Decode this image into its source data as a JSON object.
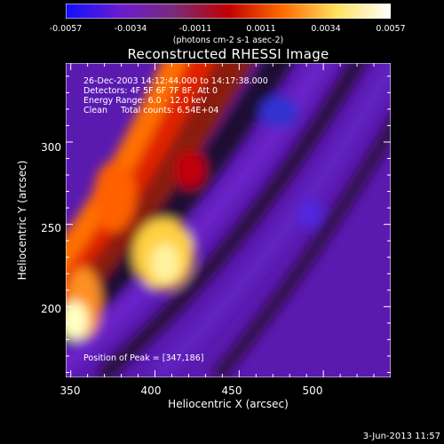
{
  "colorbar": {
    "ticks": [
      "-0.0057",
      "-0.0034",
      "-0.0011",
      "0.0011",
      "0.0034",
      "0.0057"
    ],
    "unit": "(photons cm-2 s-1 asec-2)",
    "stops": [
      "#1010ff",
      "#6a1bd0",
      "#7a2a7a",
      "#c00000",
      "#ff6a00",
      "#ffe060",
      "#ffffff"
    ]
  },
  "chart_data": {
    "type": "heatmap",
    "title": "Reconstructed RHESSI Image",
    "xlabel": "Heliocentric X (arcsec)",
    "ylabel": "Heliocentric Y (arcsec)",
    "xlim": [
      347,
      540
    ],
    "ylim": [
      157,
      348
    ],
    "xticks": [
      "350",
      "400",
      "450",
      "500"
    ],
    "yticks": [
      "200",
      "250",
      "300"
    ],
    "value_range": [
      -0.0057,
      0.0057
    ],
    "peak": [
      347,
      186
    ]
  },
  "annotations": {
    "time_range": "26-Dec-2003 14:12:44.000 to 14:17:38.000",
    "detectors": "Detectors: 4F 5F 6F 7F 8F, Att 0",
    "energy": "Energy Range: 6.0 - 12.0 keV",
    "clean": "Clean     Total counts: 6.54E+04",
    "peak_label": "Position of Peak = [347,186]"
  },
  "datestamp": "3-Jun-2013 11:57"
}
